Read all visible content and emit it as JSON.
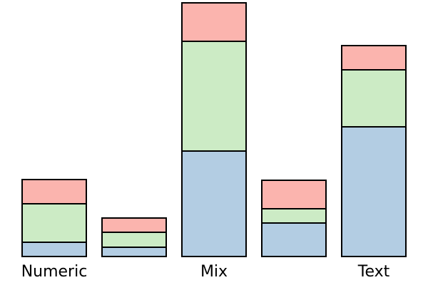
{
  "chart_data": {
    "type": "stacked-bar",
    "categories": [
      "Numeric",
      null,
      "Mix",
      null,
      "Text"
    ],
    "series": [
      {
        "color": "#b3cde3",
        "values": [
          20,
          13,
          148,
          47,
          182
        ]
      },
      {
        "color": "#ccebc5",
        "values": [
          54,
          21,
          154,
          20,
          80
        ]
      },
      {
        "color": "#fbb4ae",
        "values": [
          34,
          20,
          54,
          40,
          34
        ]
      }
    ]
  }
}
